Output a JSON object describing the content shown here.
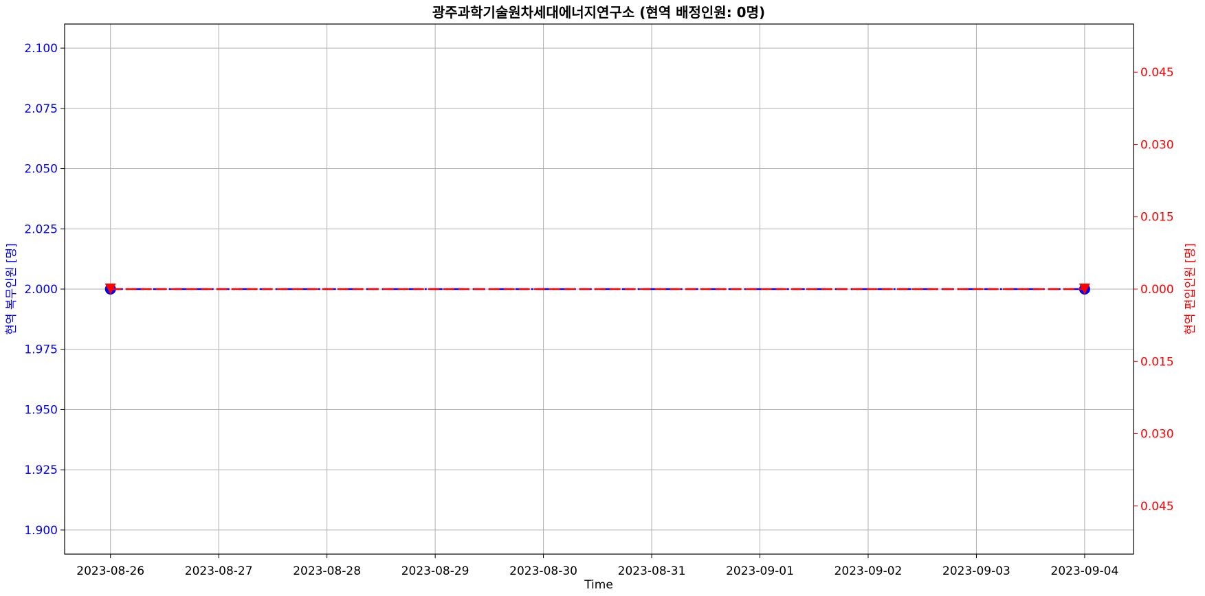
{
  "chart_data": {
    "type": "line",
    "title": "광주과학기술원차세대에너지연구소  (현역  배정인원:  0명)",
    "xlabel": "Time",
    "ylabel_left": "현역  복무인원  [명]",
    "ylabel_right": "현역  편입인원  [명]",
    "x_ticks": [
      "2023-08-26",
      "2023-08-27",
      "2023-08-28",
      "2023-08-29",
      "2023-08-30",
      "2023-08-31",
      "2023-09-01",
      "2023-09-02",
      "2023-09-03",
      "2023-09-04"
    ],
    "xlim": [
      "2023-08-25T13:50",
      "2023-09-04T10:50"
    ],
    "y_left": {
      "ticks": [
        "1.900",
        "1.925",
        "1.950",
        "1.975",
        "2.000",
        "2.025",
        "2.050",
        "2.075",
        "2.100"
      ],
      "ylim": [
        1.89,
        2.11
      ],
      "color": "#0000ff"
    },
    "y_right": {
      "ticks": [
        "0.045",
        "0.030",
        "0.015",
        "0.000",
        "0.015",
        "0.030",
        "0.045"
      ],
      "tick_values": [
        -0.045,
        -0.03,
        -0.015,
        0.0,
        0.015,
        0.03,
        0.045
      ],
      "ylim": [
        -0.055,
        0.055
      ],
      "color": "#ff0000"
    },
    "grid": true,
    "series": [
      {
        "axis": "left",
        "color": "#0000ff",
        "marker": "circle",
        "linestyle": "dash-dot",
        "x": [
          "2023-08-26",
          "2023-09-04"
        ],
        "values": [
          2,
          2
        ]
      },
      {
        "axis": "right",
        "color": "#ff0000",
        "marker": "triangle-down",
        "linestyle": "dashed",
        "x": [
          "2023-08-26",
          "2023-09-04"
        ],
        "values": [
          0,
          0
        ]
      }
    ]
  }
}
